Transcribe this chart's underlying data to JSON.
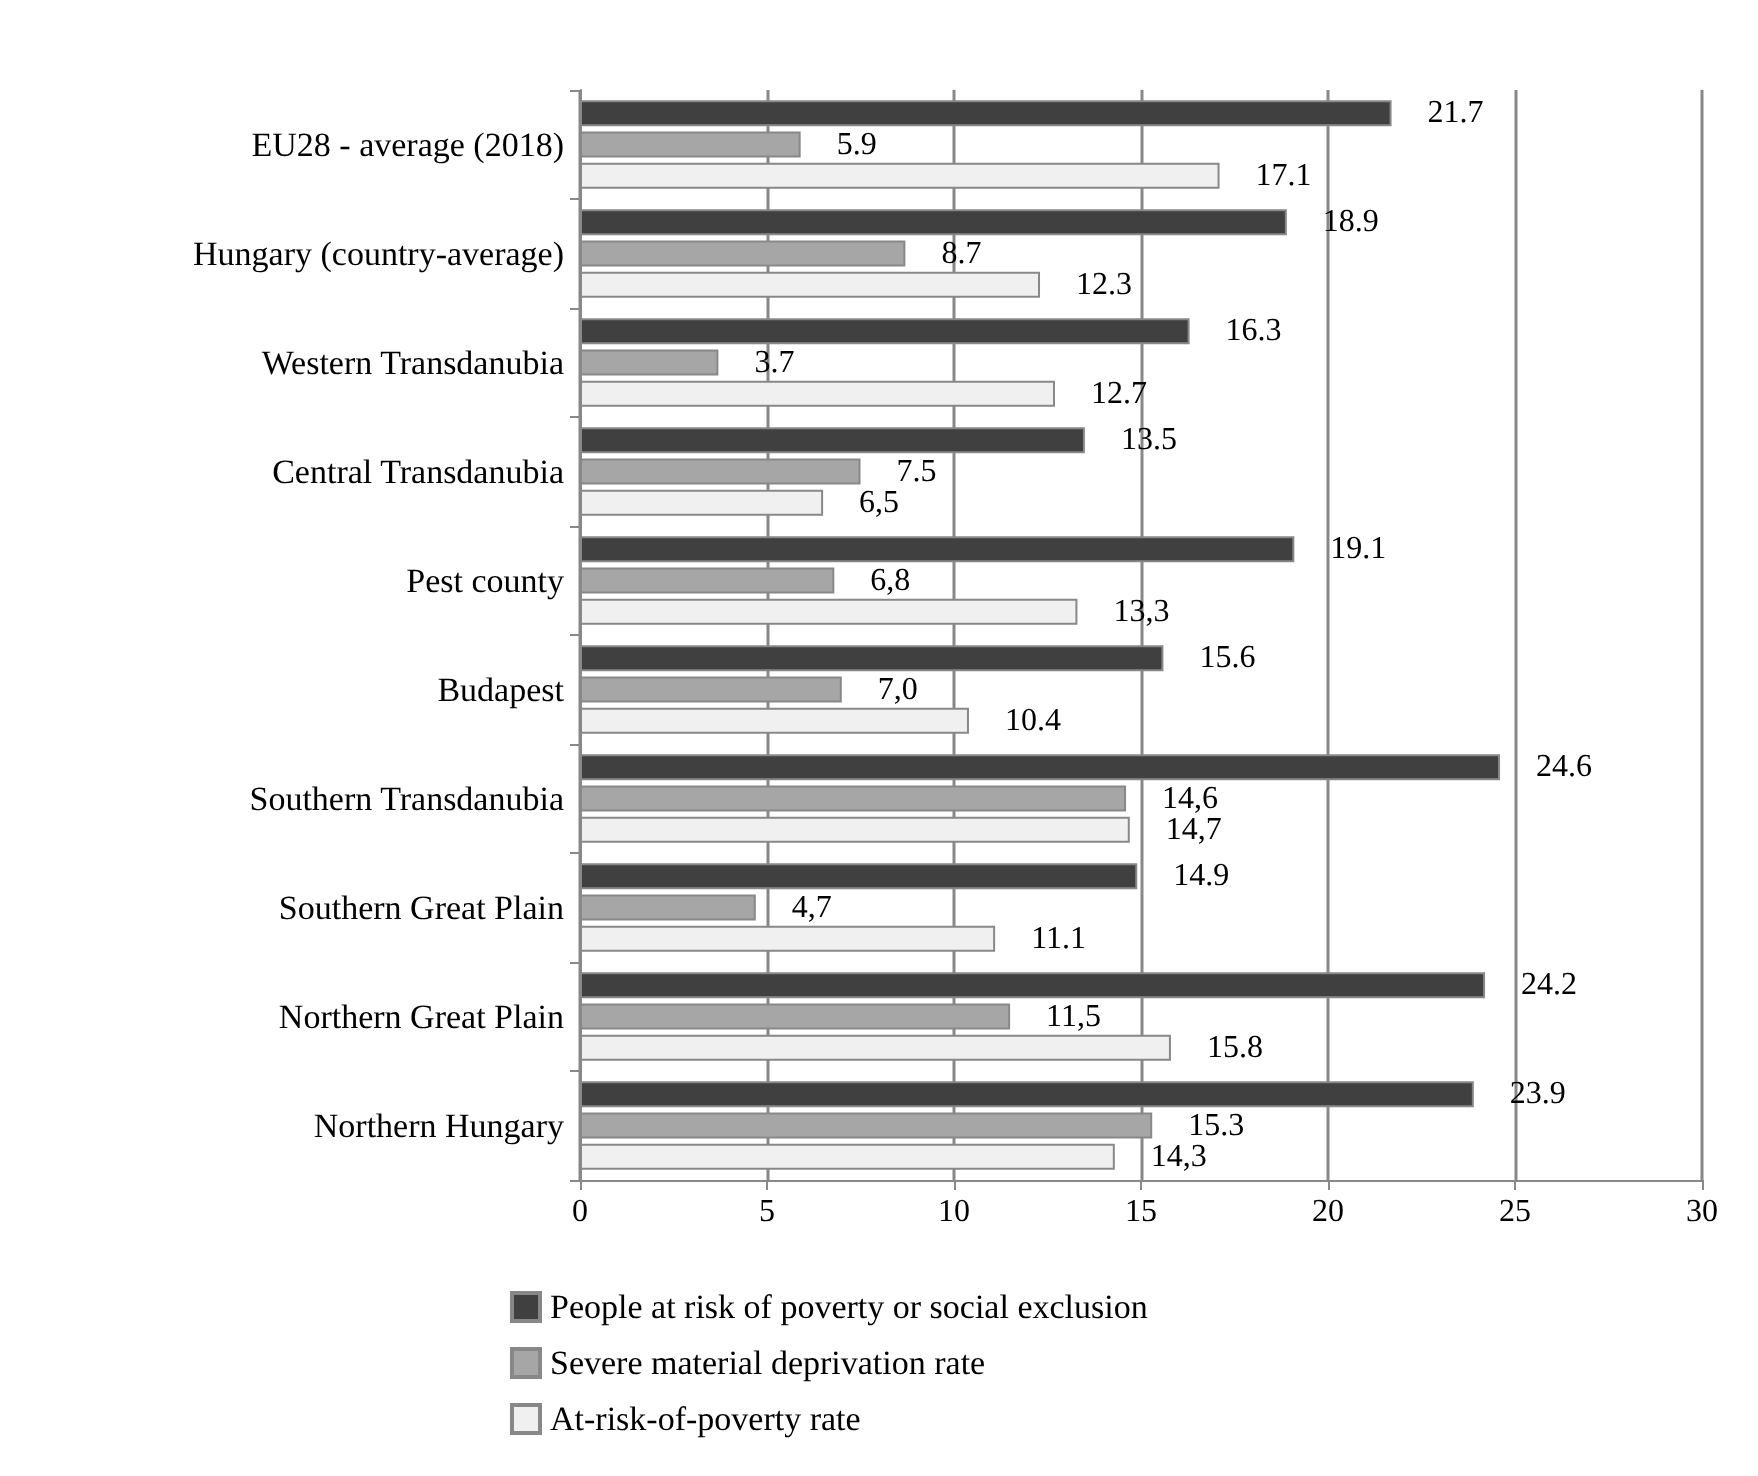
{
  "chart_data": {
    "type": "bar",
    "orientation": "horizontal",
    "categories": [
      "EU28 - average (2018)",
      "Hungary (country-average)",
      "Western Transdanubia",
      "Central Transdanubia",
      "Pest county",
      "Budapest",
      "Southern Transdanubia",
      "Southern Great Plain",
      "Northern Great Plain",
      "Northern Hungary"
    ],
    "series": [
      {
        "name": "People at risk of poverty or social exclusion",
        "color": "#404040",
        "values": [
          21.7,
          18.9,
          16.3,
          13.5,
          19.1,
          15.6,
          24.6,
          14.9,
          24.2,
          23.9
        ],
        "value_labels": [
          "21.7",
          "18.9",
          "16.3",
          "13.5",
          "19.1",
          "15.6",
          "24.6",
          "14.9",
          "24.2",
          "23.9"
        ]
      },
      {
        "name": "Severe material deprivation rate",
        "color": "#a6a6a6",
        "values": [
          5.9,
          8.7,
          3.7,
          7.5,
          6.8,
          7.0,
          14.6,
          4.7,
          11.5,
          15.3
        ],
        "value_labels": [
          "5.9",
          "8.7",
          "3.7",
          "7.5",
          "6,8",
          "7,0",
          "14,6",
          "4,7",
          "11,5",
          "15.3"
        ]
      },
      {
        "name": "At-risk-of-poverty rate",
        "color": "#f0f0f0",
        "values": [
          17.1,
          12.3,
          12.7,
          6.5,
          13.3,
          10.4,
          14.7,
          11.1,
          15.8,
          14.3
        ],
        "value_labels": [
          "17.1",
          "12.3",
          "12.7",
          "6,5",
          "13,3",
          "10.4",
          "14,7",
          "11.1",
          "15.8",
          "14,3"
        ]
      }
    ],
    "xlim": [
      0,
      30
    ],
    "xticks": [
      0,
      5,
      10,
      15,
      20,
      25,
      30
    ],
    "grid": "x",
    "legend": "bottom left"
  }
}
